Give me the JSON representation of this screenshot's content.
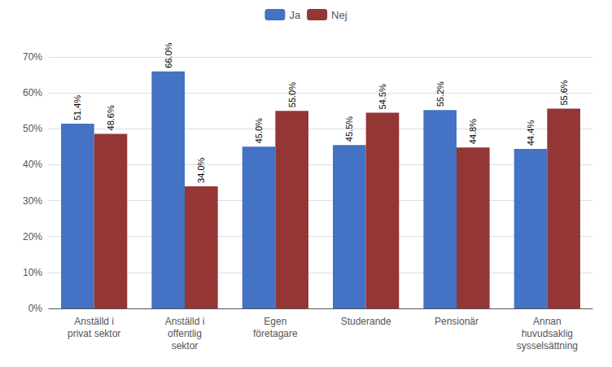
{
  "chart_data": {
    "type": "bar",
    "categories": [
      "Anställd i\nprivat sektor",
      "Anställd i\noffentlig\nsektor",
      "Egen\nföretagare",
      "Studerande",
      "Pensionär",
      "Annan\nhuvudsaklig\nsysselsättning"
    ],
    "series": [
      {
        "name": "Ja",
        "color": "#4472C4",
        "values": [
          51.4,
          66.0,
          45.0,
          45.5,
          55.2,
          44.4
        ],
        "value_labels": [
          "51.4%",
          "66.0%",
          "45.0%",
          "45.5%",
          "55.2%",
          "44.4%"
        ]
      },
      {
        "name": "Nej",
        "color": "#943634",
        "values": [
          48.6,
          34.0,
          55.0,
          54.5,
          44.8,
          55.6
        ],
        "value_labels": [
          "48.6%",
          "34.0%",
          "55.0%",
          "54.5%",
          "44.8%",
          "55.6%"
        ]
      }
    ],
    "ylim": [
      0,
      70
    ],
    "yticks": [
      {
        "value": 0,
        "label": "0%"
      },
      {
        "value": 10,
        "label": "10%"
      },
      {
        "value": 20,
        "label": "20%"
      },
      {
        "value": 30,
        "label": "30%"
      },
      {
        "value": 40,
        "label": "40%"
      },
      {
        "value": 50,
        "label": "50%"
      },
      {
        "value": 60,
        "label": "60%"
      },
      {
        "value": 70,
        "label": "70%"
      }
    ],
    "grid": true,
    "legend": "top",
    "data_labels": true
  }
}
